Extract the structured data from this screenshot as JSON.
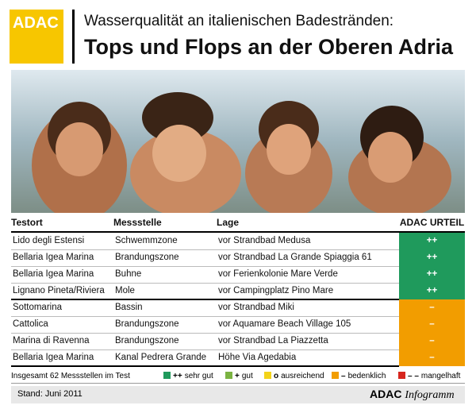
{
  "header": {
    "logo": "ADAC",
    "title_line1": "Wasserqualität an italienischen Badestränden:",
    "title_line2": "Tops und Flops an der Oberen Adria"
  },
  "table": {
    "columns": [
      "Testort",
      "Messstelle",
      "Lage",
      "ADAC URTEIL"
    ],
    "rows": [
      [
        "Lido degli Estensi",
        "Schwemmzone",
        "vor Strandbad Medusa",
        "++"
      ],
      [
        "Bellaria Igea Marina",
        "Brandungszone",
        "vor Strandbad La Grande Spiaggia 61",
        "++"
      ],
      [
        "Bellaria Igea Marina",
        "Buhne",
        "vor Ferienkolonie Mare Verde",
        "++"
      ],
      [
        "Lignano Pineta/Riviera",
        "Mole",
        "vor Campingplatz Pino Mare",
        "++"
      ],
      [
        "Sottomarina",
        "Bassin",
        "vor Strandbad Miki",
        "–"
      ],
      [
        "Cattolica",
        "Brandungszone",
        "vor Aquamare Beach Village 105",
        "–"
      ],
      [
        "Marina di Ravenna",
        "Brandungszone",
        "vor Strandbad La Piazzetta",
        "–"
      ],
      [
        "Bellaria Igea Marina",
        "Kanal Pedrera Grande",
        "Höhe Via Agedabia",
        "–"
      ]
    ]
  },
  "legend": {
    "note": "Insgesamt 62 Messstellen im Test",
    "items": [
      {
        "symbol": "++",
        "label": "sehr gut",
        "color": "#1f9a5c"
      },
      {
        "symbol": "+",
        "label": "gut",
        "color": "#7bb342"
      },
      {
        "symbol": "o",
        "label": "ausreichend",
        "color": "#f3d31a"
      },
      {
        "symbol": "–",
        "label": "bedenklich",
        "color": "#f29d00"
      },
      {
        "symbol": "– –",
        "label": "mangelhaft",
        "color": "#d7261e"
      }
    ]
  },
  "footer": {
    "date": "Stand: Juni 2011",
    "brand": "ADAC",
    "brand_suffix": "Infogramm"
  }
}
